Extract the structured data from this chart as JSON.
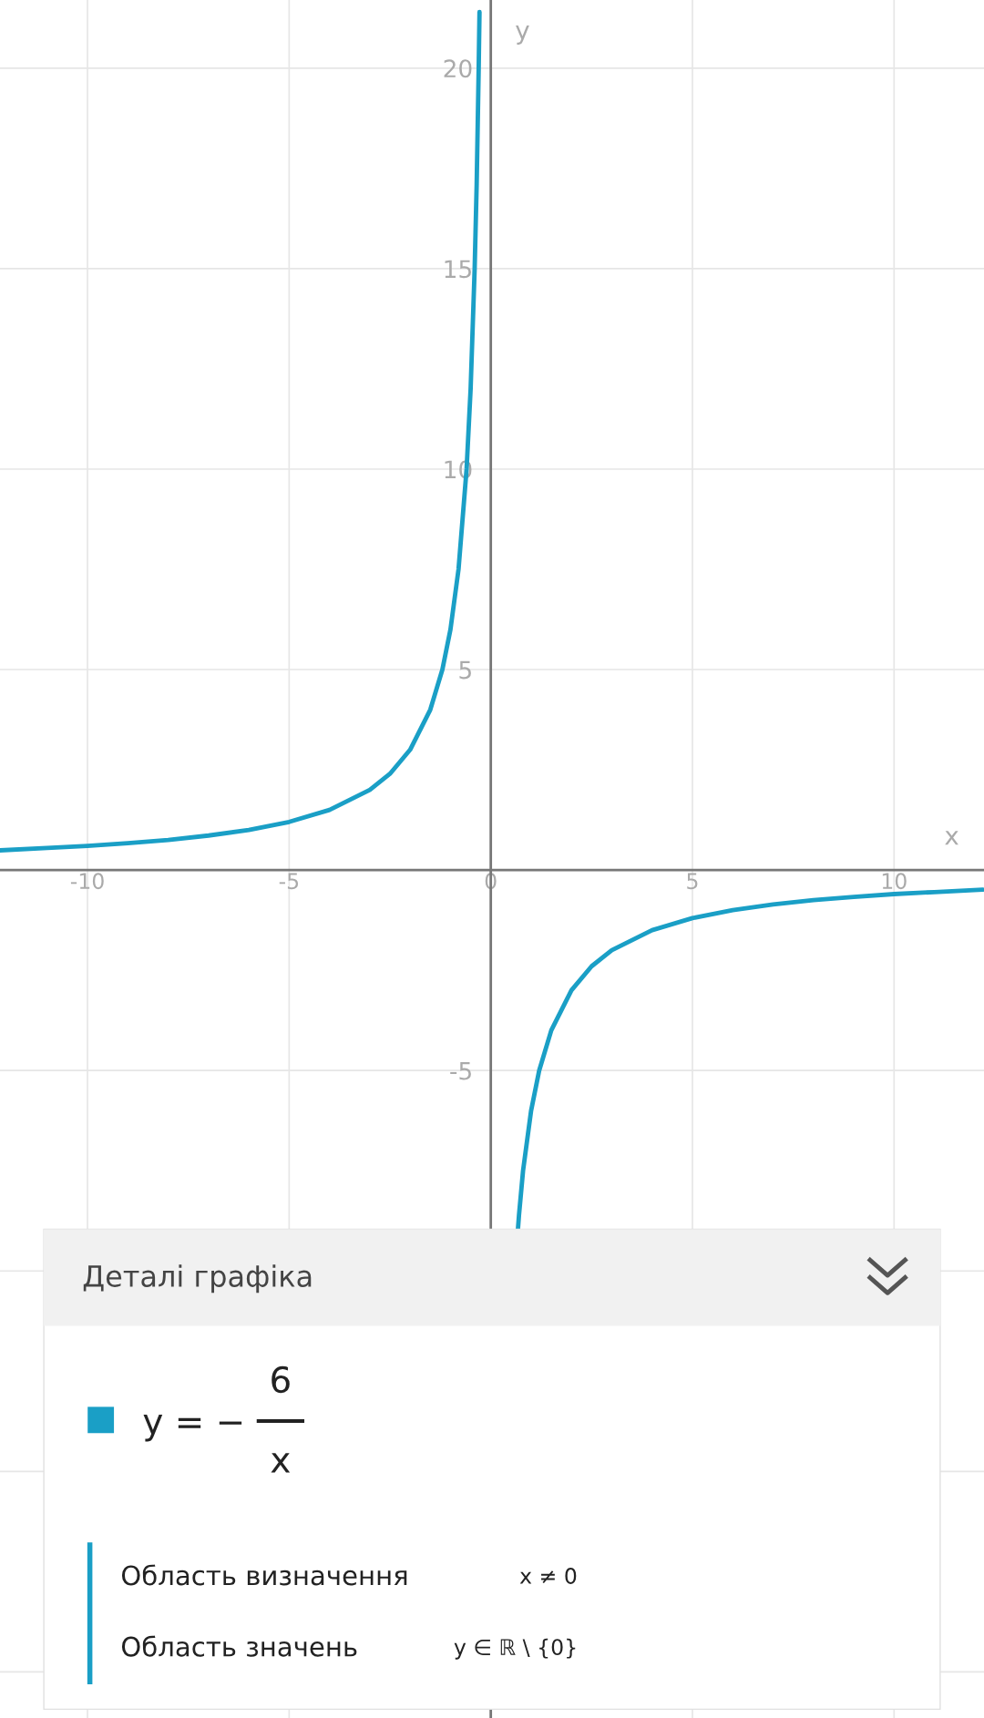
{
  "chart_data": {
    "type": "line",
    "xlabel": "x",
    "ylabel": "y",
    "x": [
      -12.17,
      -11,
      -10,
      -9,
      -8,
      -7,
      -6,
      -5,
      -4,
      -3,
      -2.5,
      -2,
      -1.5,
      -1.2,
      -1,
      -0.8,
      -0.6,
      -0.5,
      -0.4,
      -0.35,
      -0.3,
      -0.28,
      0,
      0.67,
      0.7,
      0.8,
      1,
      1.2,
      1.5,
      2,
      2.5,
      3,
      4,
      5,
      6,
      7,
      8,
      9,
      10,
      11,
      12.2
    ],
    "series": [
      {
        "color": "#1a9fc6",
        "values": [
          0.49,
          0.55,
          0.6,
          0.67,
          0.75,
          0.86,
          1,
          1.2,
          1.5,
          2,
          2.4,
          3,
          4,
          5,
          6,
          7.5,
          10,
          12,
          15,
          17.1,
          20,
          21.4,
          null,
          -9,
          -8.6,
          -7.5,
          -6,
          -5,
          -4,
          -3,
          -2.4,
          -2,
          -1.5,
          -1.2,
          -1,
          -0.86,
          -0.75,
          -0.67,
          -0.6,
          -0.55,
          -0.49
        ]
      }
    ],
    "xlim": [
      -12.17,
      12.23
    ],
    "ylim": [
      -21.15,
      21.7
    ],
    "xticks": [
      -10,
      -5,
      0,
      5,
      10
    ],
    "yticks": [
      {
        "value": -20,
        "label": null
      },
      {
        "value": -15,
        "label": null
      },
      {
        "value": -10,
        "label": null
      },
      -5,
      5,
      10,
      15,
      20
    ],
    "grid": true,
    "marker": "none",
    "line_style": "solid",
    "legend": false,
    "annotations": [
      "Деталі графіка",
      "y = −",
      "6",
      "x",
      "Область визначення",
      "x ≠ 0",
      "Область значень",
      "y ∈ ℝ \\ {0}"
    ]
  }
}
